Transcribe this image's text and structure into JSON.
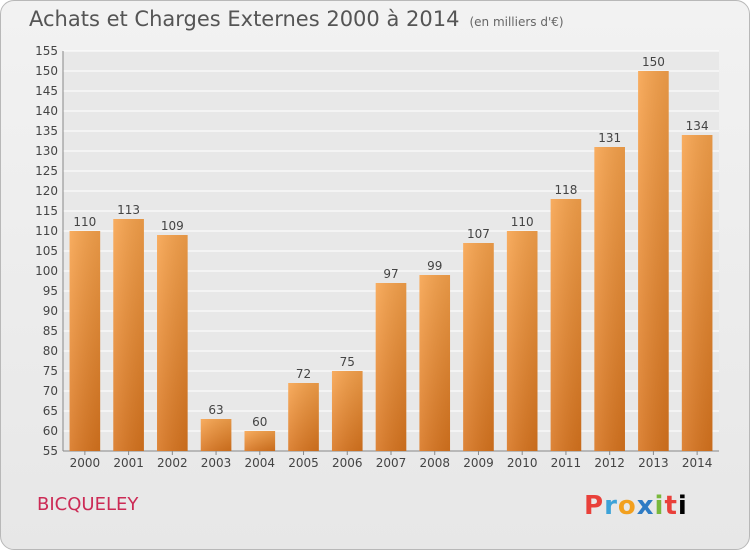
{
  "chart_data": {
    "type": "bar",
    "title": "Achats et Charges Externes 2000 à 2014",
    "unit": "(en milliers d'€)",
    "categories": [
      "2000",
      "2001",
      "2002",
      "2003",
      "2004",
      "2005",
      "2006",
      "2007",
      "2008",
      "2009",
      "2010",
      "2011",
      "2012",
      "2013",
      "2014"
    ],
    "values": [
      110,
      113,
      109,
      63,
      60,
      72,
      75,
      97,
      99,
      107,
      110,
      118,
      131,
      150,
      134
    ],
    "ylim": [
      55,
      155
    ],
    "yticks": [
      55,
      60,
      65,
      70,
      75,
      80,
      85,
      90,
      95,
      100,
      105,
      110,
      115,
      120,
      125,
      130,
      135,
      140,
      145,
      150,
      155
    ],
    "grid": true,
    "bar_color": "#f08a2a"
  },
  "footer": {
    "commune": "BICQUELEY",
    "logo_letters": [
      "P",
      "r",
      "o",
      "x",
      "i",
      "t",
      "i"
    ]
  }
}
